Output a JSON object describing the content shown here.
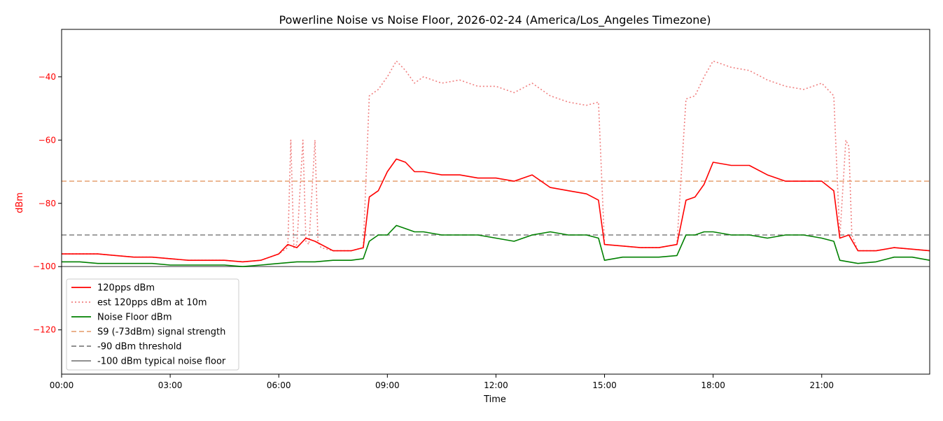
{
  "chart_data": {
    "type": "line",
    "title": "Powerline Noise vs Noise Floor, 2026-02-24 (America/Los_Angeles Timezone)",
    "xlabel": "Time",
    "ylabel": "dBm",
    "xlim": [
      "00:00",
      "23:59"
    ],
    "ylim": [
      -134,
      -25
    ],
    "x_ticks": [
      "00:00",
      "03:00",
      "06:00",
      "09:00",
      "12:00",
      "15:00",
      "18:00",
      "21:00"
    ],
    "y_ticks": [
      -40,
      -60,
      -80,
      -100,
      -120
    ],
    "y_tick_labels": [
      "−40",
      "−60",
      "−80",
      "−100",
      "−120"
    ],
    "grid": false,
    "legend_position": "lower-left",
    "colors": {
      "pps": "#ff0000",
      "est": "#f08080",
      "noise": "#008000",
      "s9": "#e8a87c",
      "threshold": "#808080",
      "floor": "#808080",
      "ylabel": "#ff0000"
    },
    "series": [
      {
        "name": "120pps dBm",
        "style": "solid",
        "x": [
          "00:00",
          "00:30",
          "01:00",
          "01:30",
          "02:00",
          "02:30",
          "03:00",
          "03:30",
          "04:00",
          "04:30",
          "05:00",
          "05:30",
          "06:00",
          "06:15",
          "06:30",
          "06:45",
          "07:00",
          "07:30",
          "08:00",
          "08:20",
          "08:30",
          "08:45",
          "09:00",
          "09:15",
          "09:30",
          "09:45",
          "10:00",
          "10:30",
          "11:00",
          "11:30",
          "12:00",
          "12:30",
          "13:00",
          "13:30",
          "14:00",
          "14:30",
          "14:50",
          "15:00",
          "15:30",
          "16:00",
          "16:30",
          "17:00",
          "17:15",
          "17:30",
          "17:45",
          "18:00",
          "18:30",
          "19:00",
          "19:30",
          "20:00",
          "20:30",
          "21:00",
          "21:20",
          "21:30",
          "21:45",
          "22:00",
          "22:30",
          "23:00",
          "23:30",
          "23:59"
        ],
        "values": [
          -96,
          -96,
          -96,
          -96.5,
          -97,
          -97,
          -97.5,
          -98,
          -98,
          -98,
          -98.5,
          -98,
          -96,
          -93,
          -94,
          -91,
          -92,
          -95,
          -95,
          -94,
          -78,
          -76,
          -70,
          -66,
          -67,
          -70,
          -70,
          -71,
          -71,
          -72,
          -72,
          -73,
          -71,
          -75,
          -76,
          -77,
          -79,
          -93,
          -93.5,
          -94,
          -94,
          -93,
          -79,
          -78,
          -74,
          -67,
          -68,
          -68,
          -71,
          -73,
          -73,
          -73,
          -76,
          -91,
          -90,
          -95,
          -95,
          -94,
          -94.5,
          -95
        ]
      },
      {
        "name": "est 120pps dBm at 10m",
        "style": "dotted",
        "x": [
          "00:00",
          "00:30",
          "01:00",
          "01:30",
          "02:00",
          "02:30",
          "03:00",
          "03:30",
          "04:00",
          "04:30",
          "05:00",
          "05:30",
          "06:00",
          "06:15",
          "06:20",
          "06:25",
          "06:30",
          "06:40",
          "06:45",
          "06:50",
          "07:00",
          "07:05",
          "07:10",
          "07:30",
          "08:00",
          "08:20",
          "08:30",
          "08:45",
          "09:00",
          "09:15",
          "09:30",
          "09:45",
          "10:00",
          "10:30",
          "11:00",
          "11:30",
          "12:00",
          "12:30",
          "13:00",
          "13:30",
          "14:00",
          "14:30",
          "14:50",
          "15:00",
          "15:30",
          "16:00",
          "16:30",
          "17:00",
          "17:15",
          "17:30",
          "17:45",
          "18:00",
          "18:30",
          "19:00",
          "19:30",
          "20:00",
          "20:30",
          "21:00",
          "21:20",
          "21:30",
          "21:40",
          "21:45",
          "21:50",
          "22:00",
          "22:30",
          "23:00",
          "23:30",
          "23:59"
        ],
        "values": [
          -96,
          -96,
          -96,
          -96.5,
          -97,
          -97,
          -97.5,
          -98,
          -98,
          -98,
          -98.5,
          -98,
          -96,
          -94,
          -60,
          -94,
          -93,
          -60,
          -92,
          -93,
          -60,
          -92,
          -94,
          -95,
          -95,
          -94,
          -46,
          -44,
          -40,
          -35,
          -38,
          -42,
          -40,
          -42,
          -41,
          -43,
          -43,
          -45,
          -42,
          -46,
          -48,
          -49,
          -48,
          -93,
          -93.5,
          -94,
          -94,
          -93,
          -47,
          -46,
          -40,
          -35,
          -37,
          -38,
          -41,
          -43,
          -44,
          -42,
          -46,
          -91,
          -60,
          -62,
          -90,
          -95,
          -95,
          -94,
          -94.5,
          -95
        ]
      },
      {
        "name": "Noise Floor dBm",
        "style": "solid",
        "x": [
          "00:00",
          "00:30",
          "01:00",
          "01:30",
          "02:00",
          "02:30",
          "03:00",
          "03:30",
          "04:00",
          "04:30",
          "05:00",
          "05:30",
          "06:00",
          "06:30",
          "07:00",
          "07:30",
          "08:00",
          "08:20",
          "08:30",
          "08:45",
          "09:00",
          "09:15",
          "09:30",
          "09:45",
          "10:00",
          "10:30",
          "11:00",
          "11:30",
          "12:00",
          "12:30",
          "13:00",
          "13:30",
          "14:00",
          "14:30",
          "14:50",
          "15:00",
          "15:30",
          "16:00",
          "16:30",
          "17:00",
          "17:15",
          "17:30",
          "17:45",
          "18:00",
          "18:30",
          "19:00",
          "19:30",
          "20:00",
          "20:30",
          "21:00",
          "21:20",
          "21:30",
          "21:45",
          "22:00",
          "22:30",
          "23:00",
          "23:30",
          "23:59"
        ],
        "values": [
          -98.5,
          -98.5,
          -99,
          -99,
          -99,
          -99,
          -99.5,
          -99.5,
          -99.5,
          -99.5,
          -100,
          -99.5,
          -99,
          -98.5,
          -98.5,
          -98,
          -98,
          -97.5,
          -92,
          -90,
          -90,
          -87,
          -88,
          -89,
          -89,
          -90,
          -90,
          -90,
          -91,
          -92,
          -90,
          -89,
          -90,
          -90,
          -91,
          -98,
          -97,
          -97,
          -97,
          -96.5,
          -90,
          -90,
          -89,
          -89,
          -90,
          -90,
          -91,
          -90,
          -90,
          -91,
          -92,
          -98,
          -98.5,
          -99,
          -98.5,
          -97,
          -97,
          -98
        ]
      }
    ],
    "reference_lines": [
      {
        "name": "S9 (-73dBm) signal strength",
        "y": -73,
        "style": "dashed"
      },
      {
        "name": "-90 dBm threshold",
        "y": -90,
        "style": "dashed"
      },
      {
        "name": "-100 dBm typical noise floor",
        "y": -100,
        "style": "solid"
      }
    ],
    "legend": [
      {
        "label": "120pps dBm",
        "color": "#ff0000",
        "style": "solid"
      },
      {
        "label": "est 120pps dBm at 10m",
        "color": "#f08080",
        "style": "dotted"
      },
      {
        "label": "Noise Floor dBm",
        "color": "#008000",
        "style": "solid"
      },
      {
        "label": "S9 (-73dBm) signal strength",
        "color": "#e8a87c",
        "style": "dashed"
      },
      {
        "label": "-90 dBm threshold",
        "color": "#808080",
        "style": "dashed"
      },
      {
        "label": "-100 dBm typical noise floor",
        "color": "#808080",
        "style": "solid"
      }
    ]
  }
}
